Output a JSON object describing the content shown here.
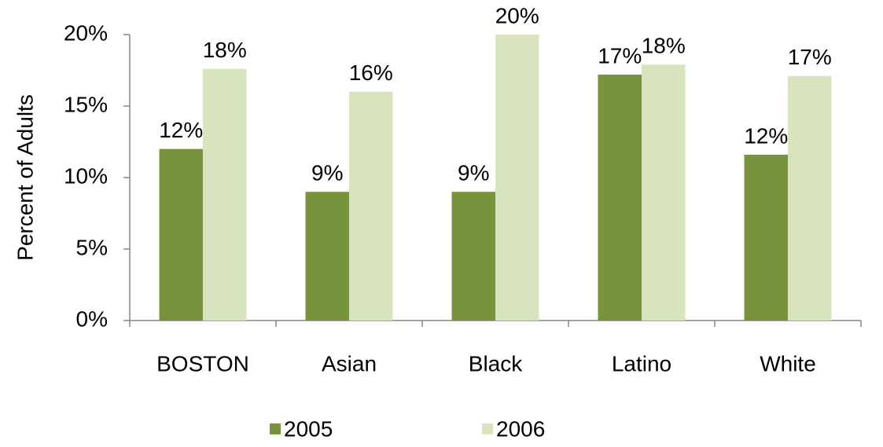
{
  "chart_data": {
    "type": "bar",
    "y_label": "Percent of Adults",
    "categories": [
      "BOSTON",
      "Asian",
      "Black",
      "Latino",
      "White"
    ],
    "series": [
      {
        "name": "2005",
        "color": "#77933c",
        "values": [
          12,
          9,
          9,
          17.2,
          11.6
        ],
        "value_labels": [
          "12%",
          "9%",
          "9%",
          "17%",
          "12%"
        ]
      },
      {
        "name": "2006",
        "color": "#d7e4bd",
        "values": [
          17.6,
          16,
          20,
          17.9,
          17.1
        ],
        "value_labels": [
          "18%",
          "16%",
          "20%",
          "18%",
          "17%"
        ]
      }
    ],
    "ylim": [
      0,
      20
    ],
    "yticks": [
      {
        "value": 0,
        "label": "0%"
      },
      {
        "value": 5,
        "label": "5%"
      },
      {
        "value": 10,
        "label": "10%"
      },
      {
        "value": 15,
        "label": "15%"
      },
      {
        "value": 20,
        "label": "20%"
      }
    ],
    "grid": false,
    "legend": "bottom"
  }
}
